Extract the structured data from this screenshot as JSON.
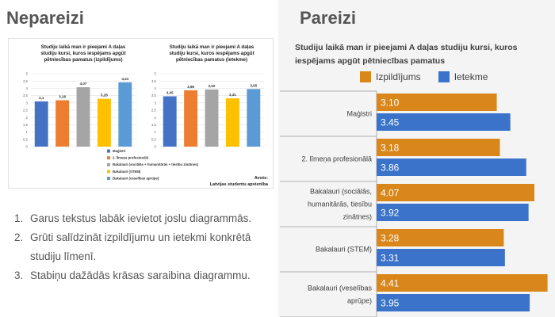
{
  "left": {
    "title": "Nepareizi",
    "notes": [
      {
        "num": "1.",
        "text": "Garus tekstus labāk ievietot joslu diagrammās."
      },
      {
        "num": "2.",
        "text": "Grūti salīdzināt izpildījumu un ietekmi konkrētā studiju līmenī."
      },
      {
        "num": "3.",
        "text": "Stabiņu dažādās krāsas saraibina diagrammu."
      }
    ],
    "source_note": [
      "Avots:",
      "Latvijas studentu apvienība"
    ]
  },
  "right": {
    "title": "Pareizi",
    "chart_title": "Studiju laikā man ir pieejami A daļas studiju kursi, kuros iespējams apgūt pētniecības pamatus"
  },
  "colors": {
    "orange": "#d9861b",
    "blue": "#3a73c9",
    "bar_value_text": "#ffffff",
    "small_series": [
      "#4472c4",
      "#ed7d31",
      "#a5a5a5",
      "#ffc000",
      "#5b9bd5"
    ]
  },
  "chart_data": [
    {
      "type": "bar",
      "title": "Studiju laikā man ir pieejami A daļas studiju kursi, kuros iespējams apgūt pētniecības pamatus (izpildījums)",
      "categories": [
        "Maģistri",
        "2. līmeņa profesionālā",
        "Bakalauri (sociālās + humanitārās + tiesību zinātnes)",
        "Bakalauri (STEM)",
        "Bakalauri (veselības aprūpe)"
      ],
      "values": [
        3.1,
        3.18,
        4.07,
        3.28,
        4.41
      ],
      "value_labels": [
        "3,1",
        "3,18",
        "4,07",
        "3,28",
        "4,41"
      ],
      "y_ticks": [
        "0",
        "0,5",
        "1",
        "1,5",
        "2",
        "2,5",
        "3",
        "3,5",
        "4",
        "4,5",
        "5"
      ],
      "ylim": [
        0,
        5
      ],
      "grid": true,
      "legend": "bottom"
    },
    {
      "type": "bar",
      "title": "Studiju laikā man ir pieejami A daļas studiju kursi, kuros iespējams apgūt pētniecības pamatus (ietekme)",
      "categories": [
        "Maģistri",
        "2. līmeņa profesionālā",
        "Bakalauri (sociālās + humanitārās + tiesību zinātnes)",
        "Bakalauri (STEM)",
        "Bakalauri (veselības aprūpe)"
      ],
      "values": [
        3.45,
        3.86,
        3.92,
        3.31,
        3.95
      ],
      "value_labels": [
        "3,45",
        "3,86",
        "3,92",
        "3,31",
        "3,95"
      ],
      "y_ticks": [
        "0",
        "0,5",
        "1",
        "1,5",
        "2",
        "2,5",
        "3",
        "3,5",
        "4",
        "4,5",
        "5"
      ],
      "ylim": [
        0,
        5
      ],
      "grid": true
    },
    {
      "type": "bar",
      "orientation": "horizontal",
      "title": "Studiju laikā man ir pieejami A daļas studiju kursi, kuros iespējams apgūt pētniecības pamatus",
      "categories": [
        "Maģistri",
        "2. līmeņa profesionālā",
        "Bakalauri (sociālās, humanitārās, tiesību zinātnes)",
        "Bakalauri (STEM)",
        "Bakalauri (veselības aprūpe)"
      ],
      "series": [
        {
          "name": "Izpildījums",
          "values": [
            3.1,
            3.18,
            4.07,
            3.28,
            4.41
          ],
          "labels": [
            "3.10",
            "3.18",
            "4.07",
            "3.28",
            "4.41"
          ],
          "color": "#d9861b"
        },
        {
          "name": "Ietekme",
          "values": [
            3.45,
            3.86,
            3.92,
            3.31,
            3.95
          ],
          "labels": [
            "3.45",
            "3.86",
            "3.92",
            "3.31",
            "3.95"
          ],
          "color": "#3a73c9"
        }
      ],
      "xlim": [
        0,
        4.5
      ],
      "legend": "top"
    }
  ]
}
